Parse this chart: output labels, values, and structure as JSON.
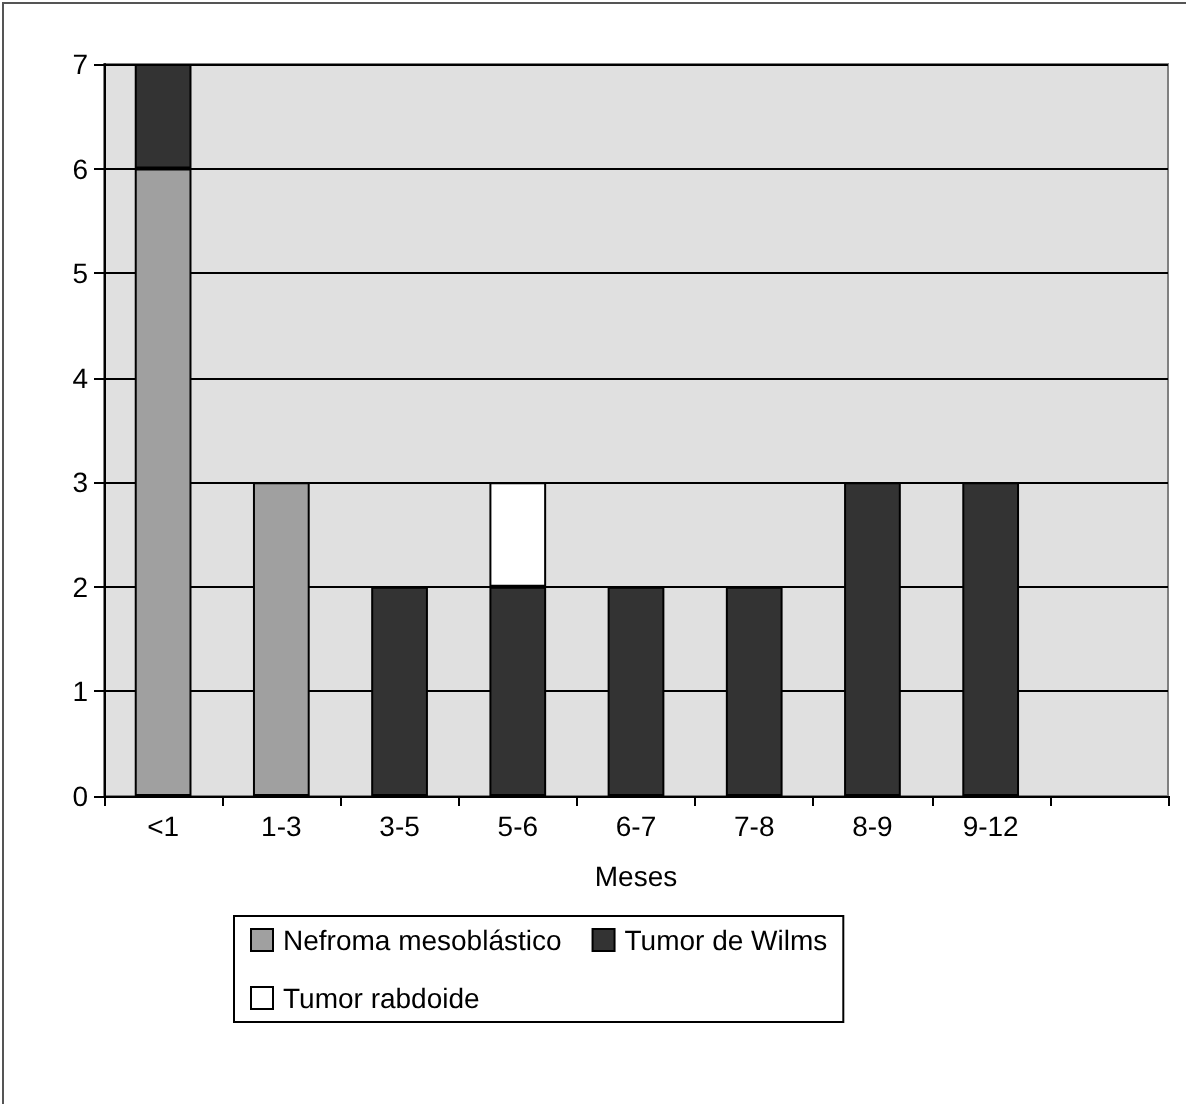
{
  "chart_data": {
    "type": "bar",
    "stacked": true,
    "xlabel": "Meses",
    "categories": [
      "<1",
      "1-3",
      "3-5",
      "5-6",
      "6-7",
      "7-8",
      "8-9",
      "9-12",
      null
    ],
    "series": [
      {
        "name": "Nefroma mesoblástico",
        "color": "#a0a0a0",
        "values": [
          6,
          3,
          null,
          null,
          null,
          null,
          null,
          null,
          null
        ]
      },
      {
        "name": "Tumor de Wilms",
        "color": "#333333",
        "values": [
          1,
          null,
          2,
          2,
          2,
          2,
          3,
          3,
          null
        ]
      },
      {
        "name": "Tumor rabdoide",
        "color": "#ffffff",
        "values": [
          null,
          null,
          null,
          1,
          null,
          null,
          null,
          null,
          null
        ]
      }
    ],
    "ylim": [
      0,
      7
    ],
    "yticks": [
      0,
      1,
      2,
      3,
      4,
      5,
      6,
      7
    ],
    "grid": "y",
    "legend": "bottom"
  }
}
